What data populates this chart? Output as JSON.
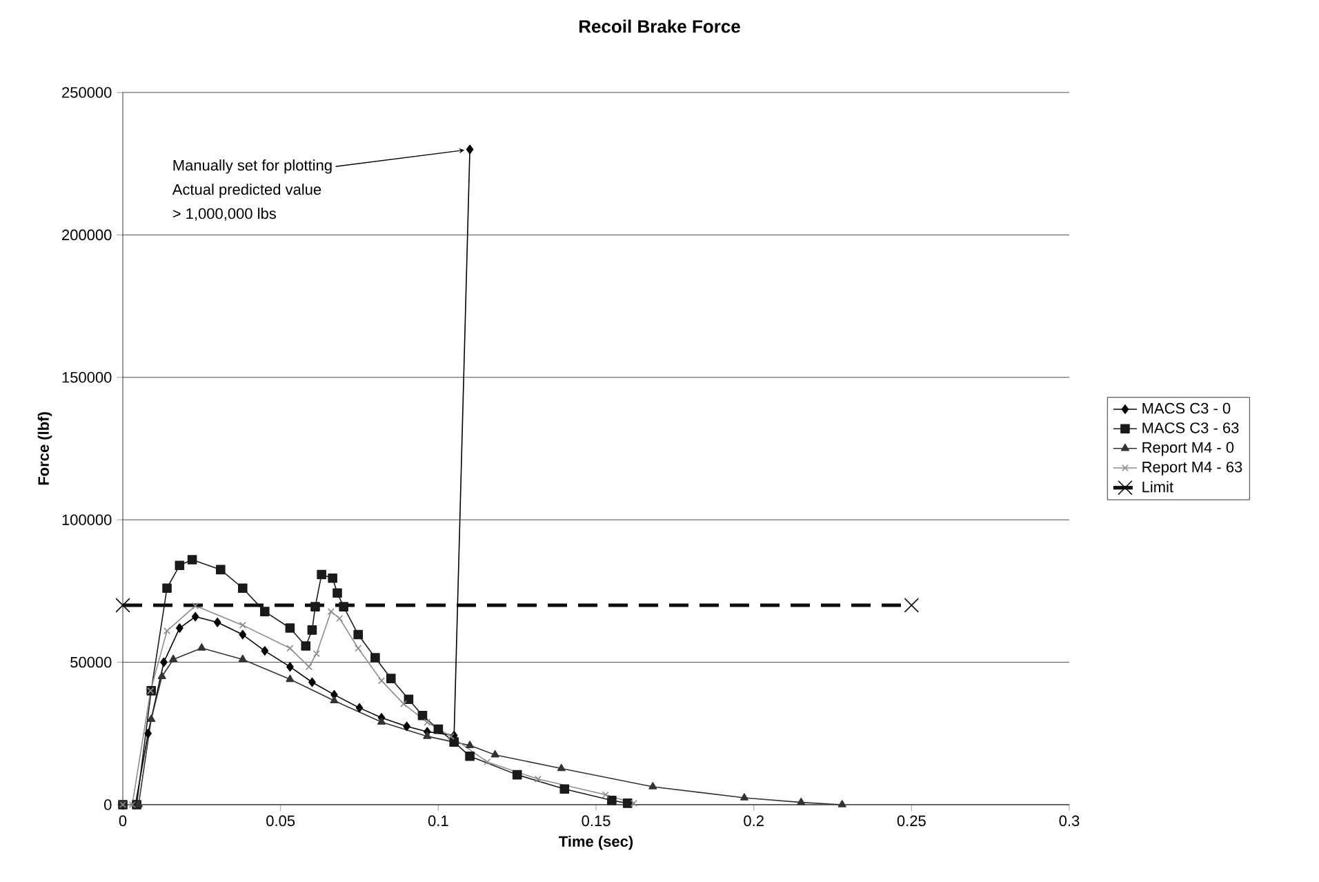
{
  "chart_data": {
    "type": "line",
    "title": "Recoil Brake Force",
    "xlabel": "Time (sec)",
    "ylabel": "Force (lbf)",
    "xlim": [
      0,
      0.3
    ],
    "xticks": [
      0,
      0.05,
      0.1,
      0.15,
      0.2,
      0.25,
      0.3
    ],
    "ylim": [
      0,
      250000
    ],
    "yticks": [
      0,
      50000,
      100000,
      150000,
      200000,
      250000
    ],
    "grid": "y",
    "legend": "right",
    "annotations": [
      {
        "text": "Manually set for plotting",
        "x": 0.11,
        "y": 230000
      },
      "Actual predicted value",
      "> 1,000,000 lbs"
    ],
    "series": [
      {
        "name": "MACS C3 - 0",
        "color": "#000000",
        "marker": "diamond",
        "x": [
          0,
          0.004,
          0.008,
          0.013,
          0.018,
          0.023,
          0.03,
          0.038,
          0.045,
          0.053,
          0.06,
          0.067,
          0.075,
          0.082,
          0.09,
          0.0965,
          0.105,
          0.11
        ],
        "values": [
          0,
          0,
          25000,
          50000,
          62000,
          66000,
          64000,
          59700,
          54000,
          48400,
          43000,
          38600,
          34000,
          30500,
          27500,
          25600,
          24300,
          230000
        ]
      },
      {
        "name": "MACS C3 - 63",
        "color": "#1a1a1a",
        "marker": "square",
        "x": [
          0,
          0.0044,
          0.009,
          0.014,
          0.018,
          0.022,
          0.031,
          0.038,
          0.045,
          0.053,
          0.058,
          0.06,
          0.061,
          0.063,
          0.0665,
          0.068,
          0.07,
          0.0746,
          0.08,
          0.085,
          0.0906,
          0.095,
          0.1,
          0.105,
          0.11,
          0.125,
          0.14,
          0.155,
          0.16
        ],
        "values": [
          0,
          0,
          40000,
          76000,
          84000,
          86000,
          82500,
          76000,
          67800,
          62000,
          55700,
          61300,
          69500,
          80800,
          79500,
          74300,
          69500,
          59700,
          51600,
          44300,
          37000,
          31300,
          26500,
          22000,
          17000,
          10500,
          5500,
          1500,
          500
        ]
      },
      {
        "name": "Report M4 - 0",
        "color": "#333333",
        "marker": "triangle",
        "x": [
          0,
          0.005,
          0.009,
          0.0124,
          0.016,
          0.025,
          0.038,
          0.053,
          0.067,
          0.082,
          0.0965,
          0.11,
          0.118,
          0.139,
          0.168,
          0.197,
          0.215,
          0.228
        ],
        "values": [
          0,
          0,
          30000,
          45000,
          51000,
          55000,
          51000,
          44000,
          36500,
          29000,
          24000,
          20800,
          17500,
          12700,
          6300,
          2400,
          800,
          0
        ]
      },
      {
        "name": "Report M4 - 63",
        "color": "#8c8c8c",
        "marker": "cross",
        "x": [
          0,
          0.003,
          0.0088,
          0.014,
          0.023,
          0.038,
          0.053,
          0.059,
          0.0614,
          0.066,
          0.0687,
          0.0746,
          0.082,
          0.089,
          0.0965,
          0.104,
          0.1155,
          0.1316,
          0.153,
          0.162
        ],
        "values": [
          0,
          0,
          40000,
          61000,
          69800,
          63000,
          54900,
          48400,
          53000,
          67800,
          65400,
          54900,
          43500,
          35400,
          28900,
          24000,
          15000,
          9000,
          3500,
          500
        ]
      },
      {
        "name": "Limit",
        "color": "#0d0d0d",
        "marker": "cross",
        "line_style": "dashed",
        "x": [
          0,
          0.25
        ],
        "values": [
          70000,
          70000
        ]
      }
    ]
  }
}
